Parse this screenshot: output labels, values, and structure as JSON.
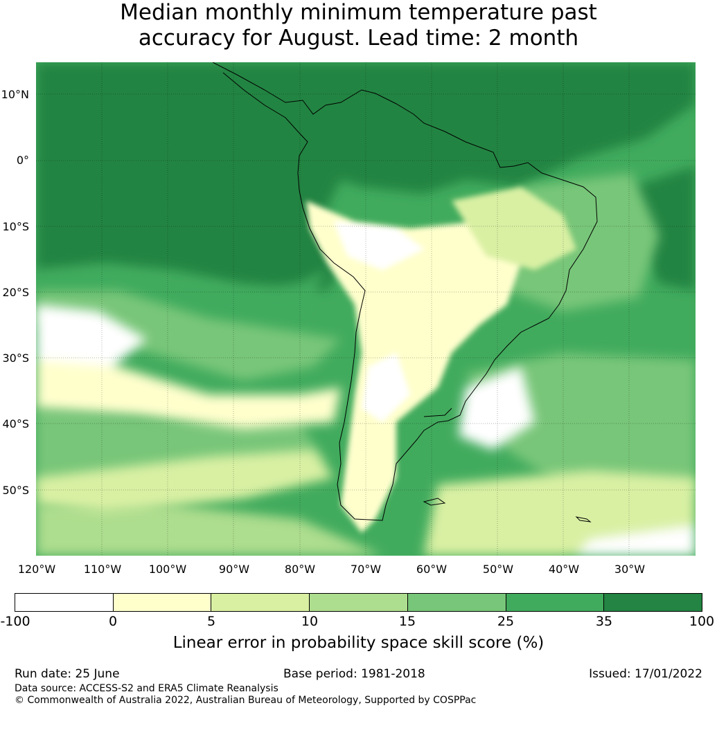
{
  "title": {
    "line1": "Median monthly minimum temperature past",
    "line2": "accuracy for August. Lead time: 2 month"
  },
  "map": {
    "region": "South America and surrounding oceans",
    "lat_labels": [
      "10°N",
      "0°",
      "10°S",
      "20°S",
      "30°S",
      "40°S",
      "50°S"
    ],
    "lon_labels": [
      "120°W",
      "110°W",
      "100°W",
      "90°W",
      "80°W",
      "70°W",
      "60°W",
      "50°W",
      "40°W",
      "30°W"
    ],
    "gridlines": true
  },
  "legend": {
    "ticks": [
      "-100",
      "0",
      "5",
      "10",
      "15",
      "25",
      "35",
      "100"
    ],
    "colors": [
      "#ffffff",
      "#ffffcc",
      "#d9f0a3",
      "#addd8e",
      "#78c679",
      "#41ab5d",
      "#238443"
    ],
    "label": "Linear error in probability space skill score (%)"
  },
  "footer": {
    "run_date": "Run date: 25 June",
    "base_period": "Base period: 1981-2018",
    "issued": "Issued: 17/01/2022",
    "source": "Data source: ACCESS-S2 and ERA5 Climate Reanalysis",
    "copyright": "© Commonwealth of Australia 2022, Australian Bureau of Meteorology, Supported by COSPPac"
  }
}
